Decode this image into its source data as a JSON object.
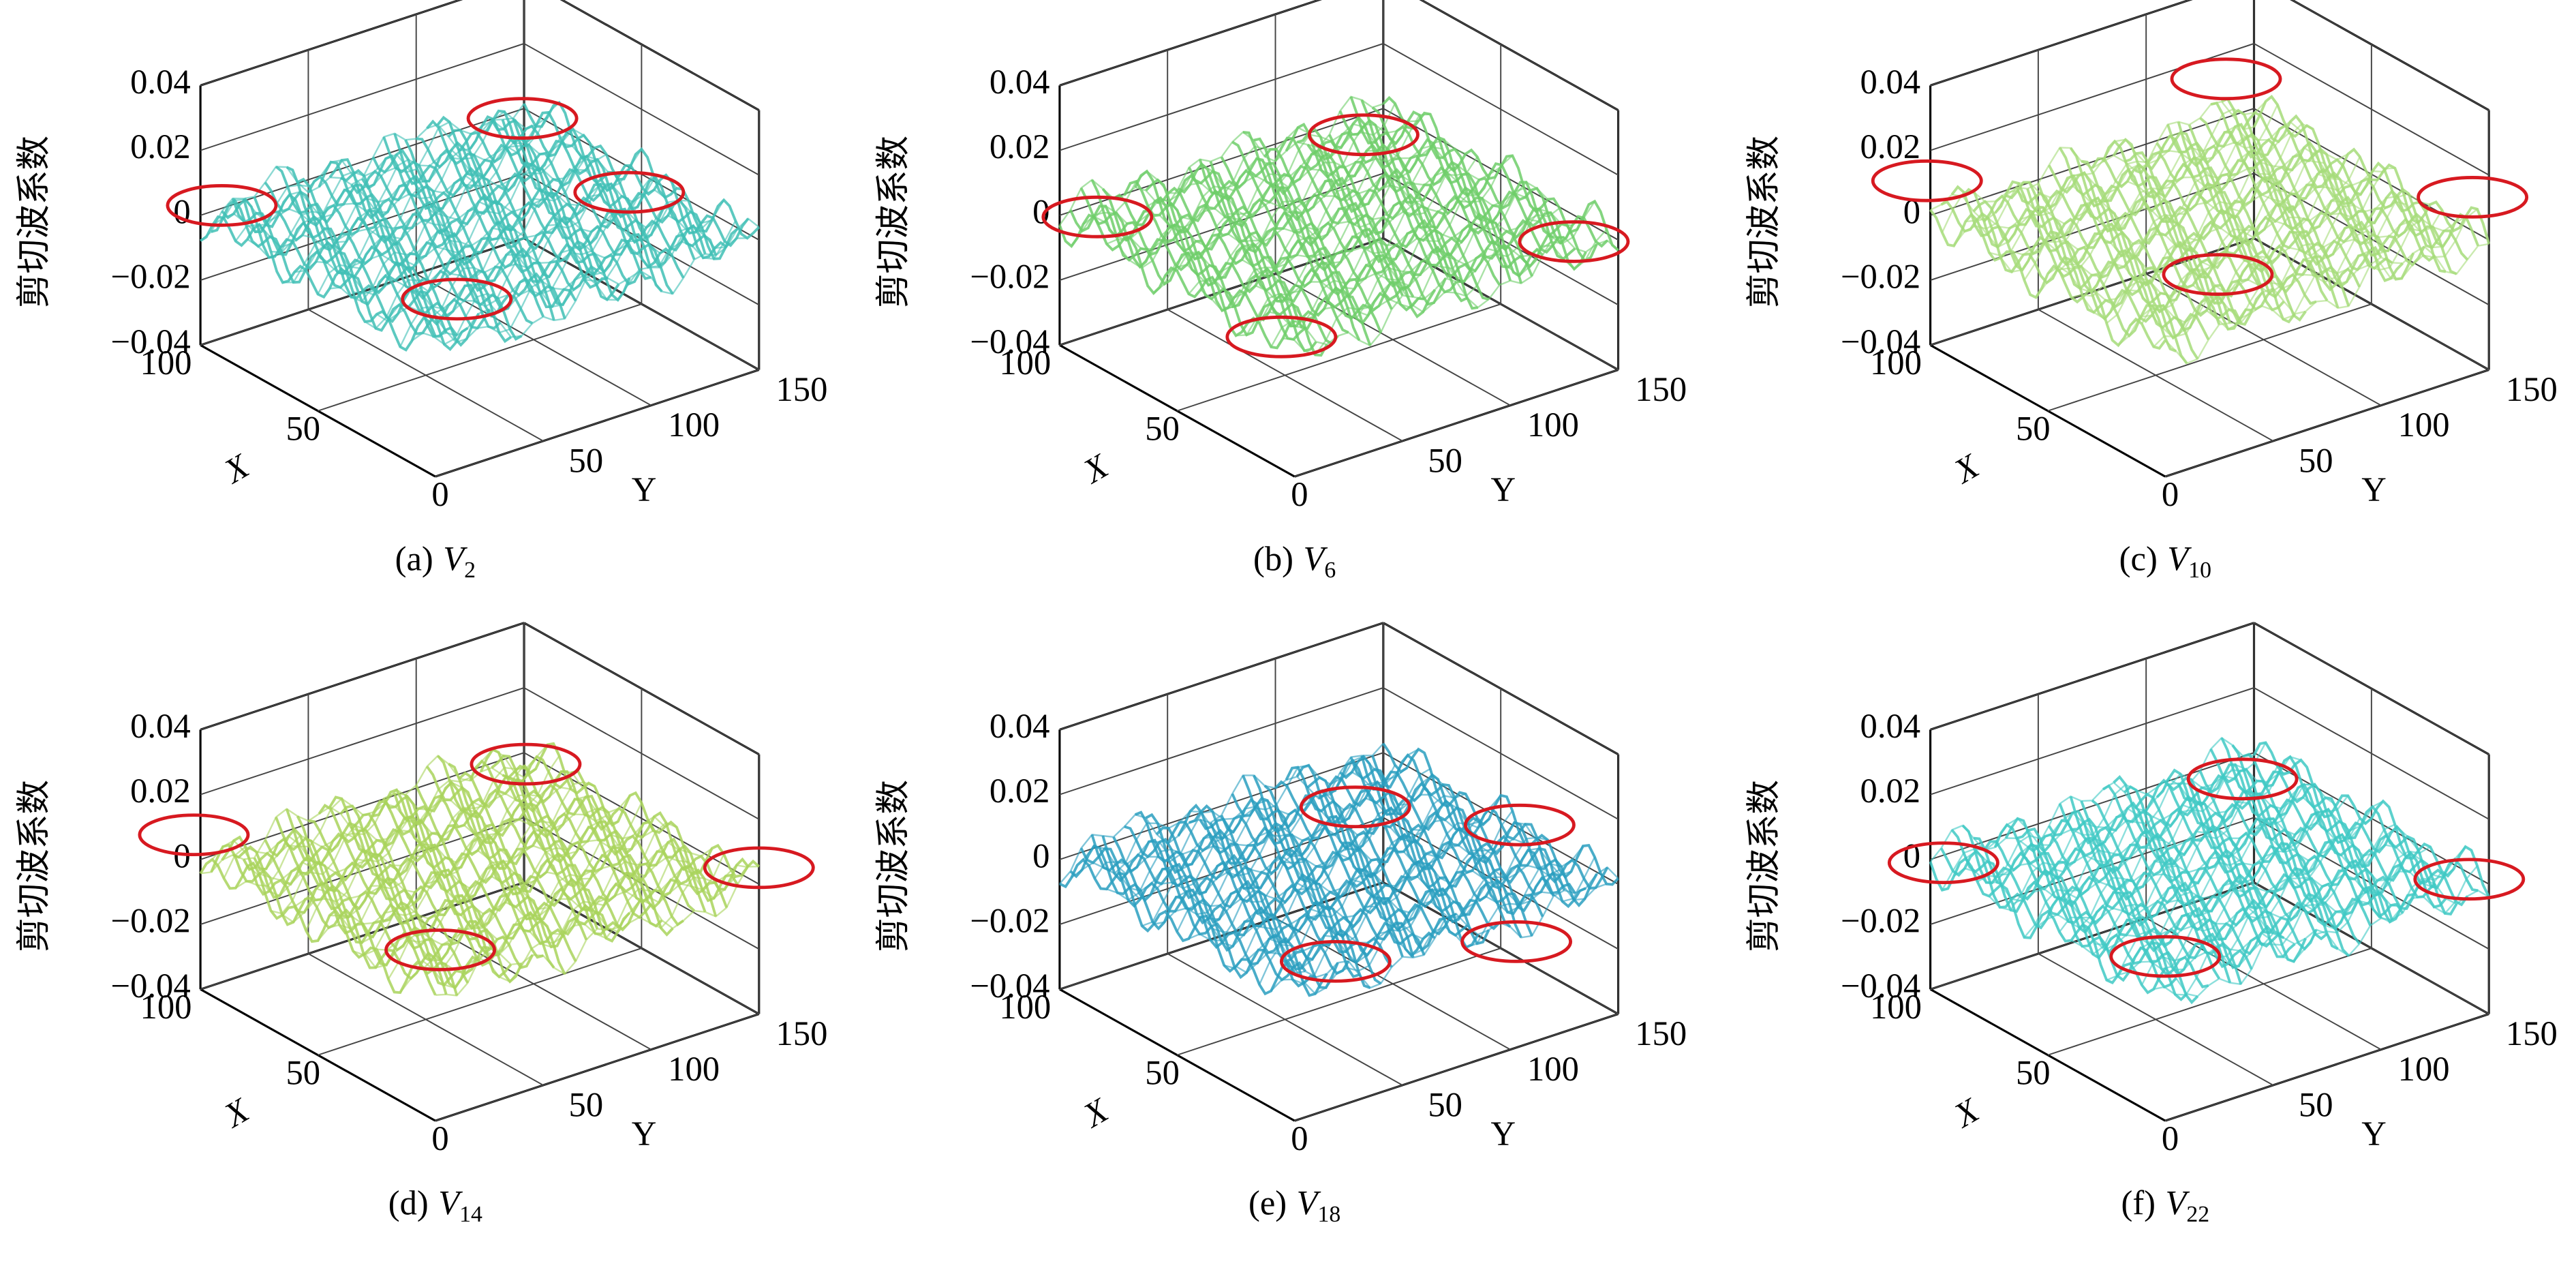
{
  "chart_data": [
    {
      "type": "surface3d",
      "panel": "(a)",
      "var": "V",
      "sub": "2",
      "zlabel": "剪切波系数",
      "xlabel": "X",
      "ylabel": "Y",
      "color": "#3fbfb5",
      "zlim": [
        -0.04,
        0.04
      ],
      "zticks": [
        0.04,
        0.02,
        0,
        {
          "value": -0.02,
          "label": "−0.02"
        },
        {
          "value": -0.04,
          "label": "−0.04"
        }
      ],
      "xlim": [
        0,
        100
      ],
      "xticks": [
        0,
        50,
        100
      ],
      "ylim": [
        0,
        150
      ],
      "yticks": [
        50,
        100,
        150
      ]
    },
    {
      "type": "surface3d",
      "panel": "(b)",
      "var": "V",
      "sub": "6",
      "zlabel": "剪切波系数",
      "xlabel": "X",
      "ylabel": "Y",
      "color": "#6fce6a",
      "zlim": [
        -0.04,
        0.04
      ],
      "zticks": [
        0.04,
        0.02,
        0,
        {
          "value": -0.02,
          "label": "−0.02"
        },
        {
          "value": -0.04,
          "label": "−0.04"
        }
      ],
      "xlim": [
        0,
        100
      ],
      "xticks": [
        0,
        50,
        100
      ],
      "ylim": [
        0,
        150
      ],
      "yticks": [
        50,
        100,
        150
      ]
    },
    {
      "type": "surface3d",
      "panel": "(c)",
      "var": "V",
      "sub": "10",
      "zlabel": "剪切波系数",
      "xlabel": "X",
      "ylabel": "Y",
      "color": "#a6dc7a",
      "zlim": [
        -0.04,
        0.04
      ],
      "zticks": [
        0.04,
        0.02,
        0,
        {
          "value": -0.02,
          "label": "−0.02"
        },
        {
          "value": -0.04,
          "label": "−0.04"
        }
      ],
      "xlim": [
        0,
        100
      ],
      "xticks": [
        0,
        50,
        100
      ],
      "ylim": [
        0,
        150
      ],
      "yticks": [
        50,
        100,
        150
      ]
    },
    {
      "type": "surface3d",
      "panel": "(d)",
      "var": "V",
      "sub": "14",
      "zlabel": "剪切波系数",
      "xlabel": "X",
      "ylabel": "Y",
      "color": "#a9d35c",
      "zlim": [
        -0.04,
        0.04
      ],
      "zticks": [
        0.04,
        0.02,
        0,
        {
          "value": -0.02,
          "label": "−0.02"
        },
        {
          "value": -0.04,
          "label": "−0.04"
        }
      ],
      "xlim": [
        0,
        100
      ],
      "xticks": [
        0,
        50,
        100
      ],
      "ylim": [
        0,
        150
      ],
      "yticks": [
        50,
        100,
        150
      ]
    },
    {
      "type": "surface3d",
      "panel": "(e)",
      "var": "V",
      "sub": "18",
      "zlabel": "剪切波系数",
      "xlabel": "X",
      "ylabel": "Y",
      "color": "#2a9fc0",
      "zlim": [
        -0.04,
        0.04
      ],
      "zticks": [
        0.04,
        0.02,
        0,
        {
          "value": -0.02,
          "label": "−0.02"
        },
        {
          "value": -0.04,
          "label": "−0.04"
        }
      ],
      "xlim": [
        0,
        100
      ],
      "xticks": [
        0,
        50,
        100
      ],
      "ylim": [
        0,
        150
      ],
      "yticks": [
        50,
        100,
        150
      ]
    },
    {
      "type": "surface3d",
      "panel": "(f)",
      "var": "V",
      "sub": "22",
      "zlabel": "剪切波系数",
      "xlabel": "X",
      "ylabel": "Y",
      "color": "#3fc9c4",
      "zlim": [
        -0.04,
        0.04
      ],
      "zticks": [
        0.04,
        0.02,
        0,
        {
          "value": -0.02,
          "label": "−0.02"
        },
        {
          "value": -0.04,
          "label": "−0.04"
        }
      ],
      "xlim": [
        0,
        100
      ],
      "xticks": [
        0,
        50,
        100
      ],
      "ylim": [
        0,
        150
      ],
      "yticks": [
        50,
        100,
        150
      ]
    }
  ]
}
